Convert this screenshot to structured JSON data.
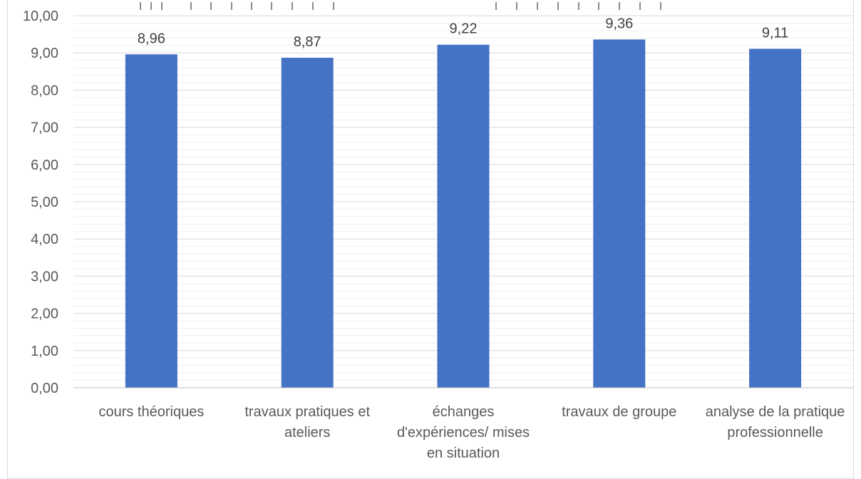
{
  "chart_data": {
    "type": "bar",
    "title": "",
    "xlabel": "",
    "ylabel": "",
    "categories": [
      [
        "cours théoriques"
      ],
      [
        "travaux pratiques et",
        "ateliers"
      ],
      [
        "échanges",
        "d'expériences/ mises",
        "en situation"
      ],
      [
        "travaux de groupe"
      ],
      [
        "analyse de la pratique",
        "professionnelle"
      ]
    ],
    "values": [
      8.96,
      8.87,
      9.22,
      9.36,
      9.11
    ],
    "data_labels": [
      "8,96",
      "8,87",
      "9,22",
      "9,36",
      "9,11"
    ],
    "ylim": [
      0,
      10
    ],
    "y_ticks": [
      "0,00",
      "1,00",
      "2,00",
      "3,00",
      "4,00",
      "5,00",
      "6,00",
      "7,00",
      "8,00",
      "9,00",
      "10,00"
    ],
    "y_tick_values": [
      0,
      1,
      2,
      3,
      4,
      5,
      6,
      7,
      8,
      9,
      10
    ],
    "grid": true,
    "legend": "none",
    "bar_color": "#4472c4"
  }
}
